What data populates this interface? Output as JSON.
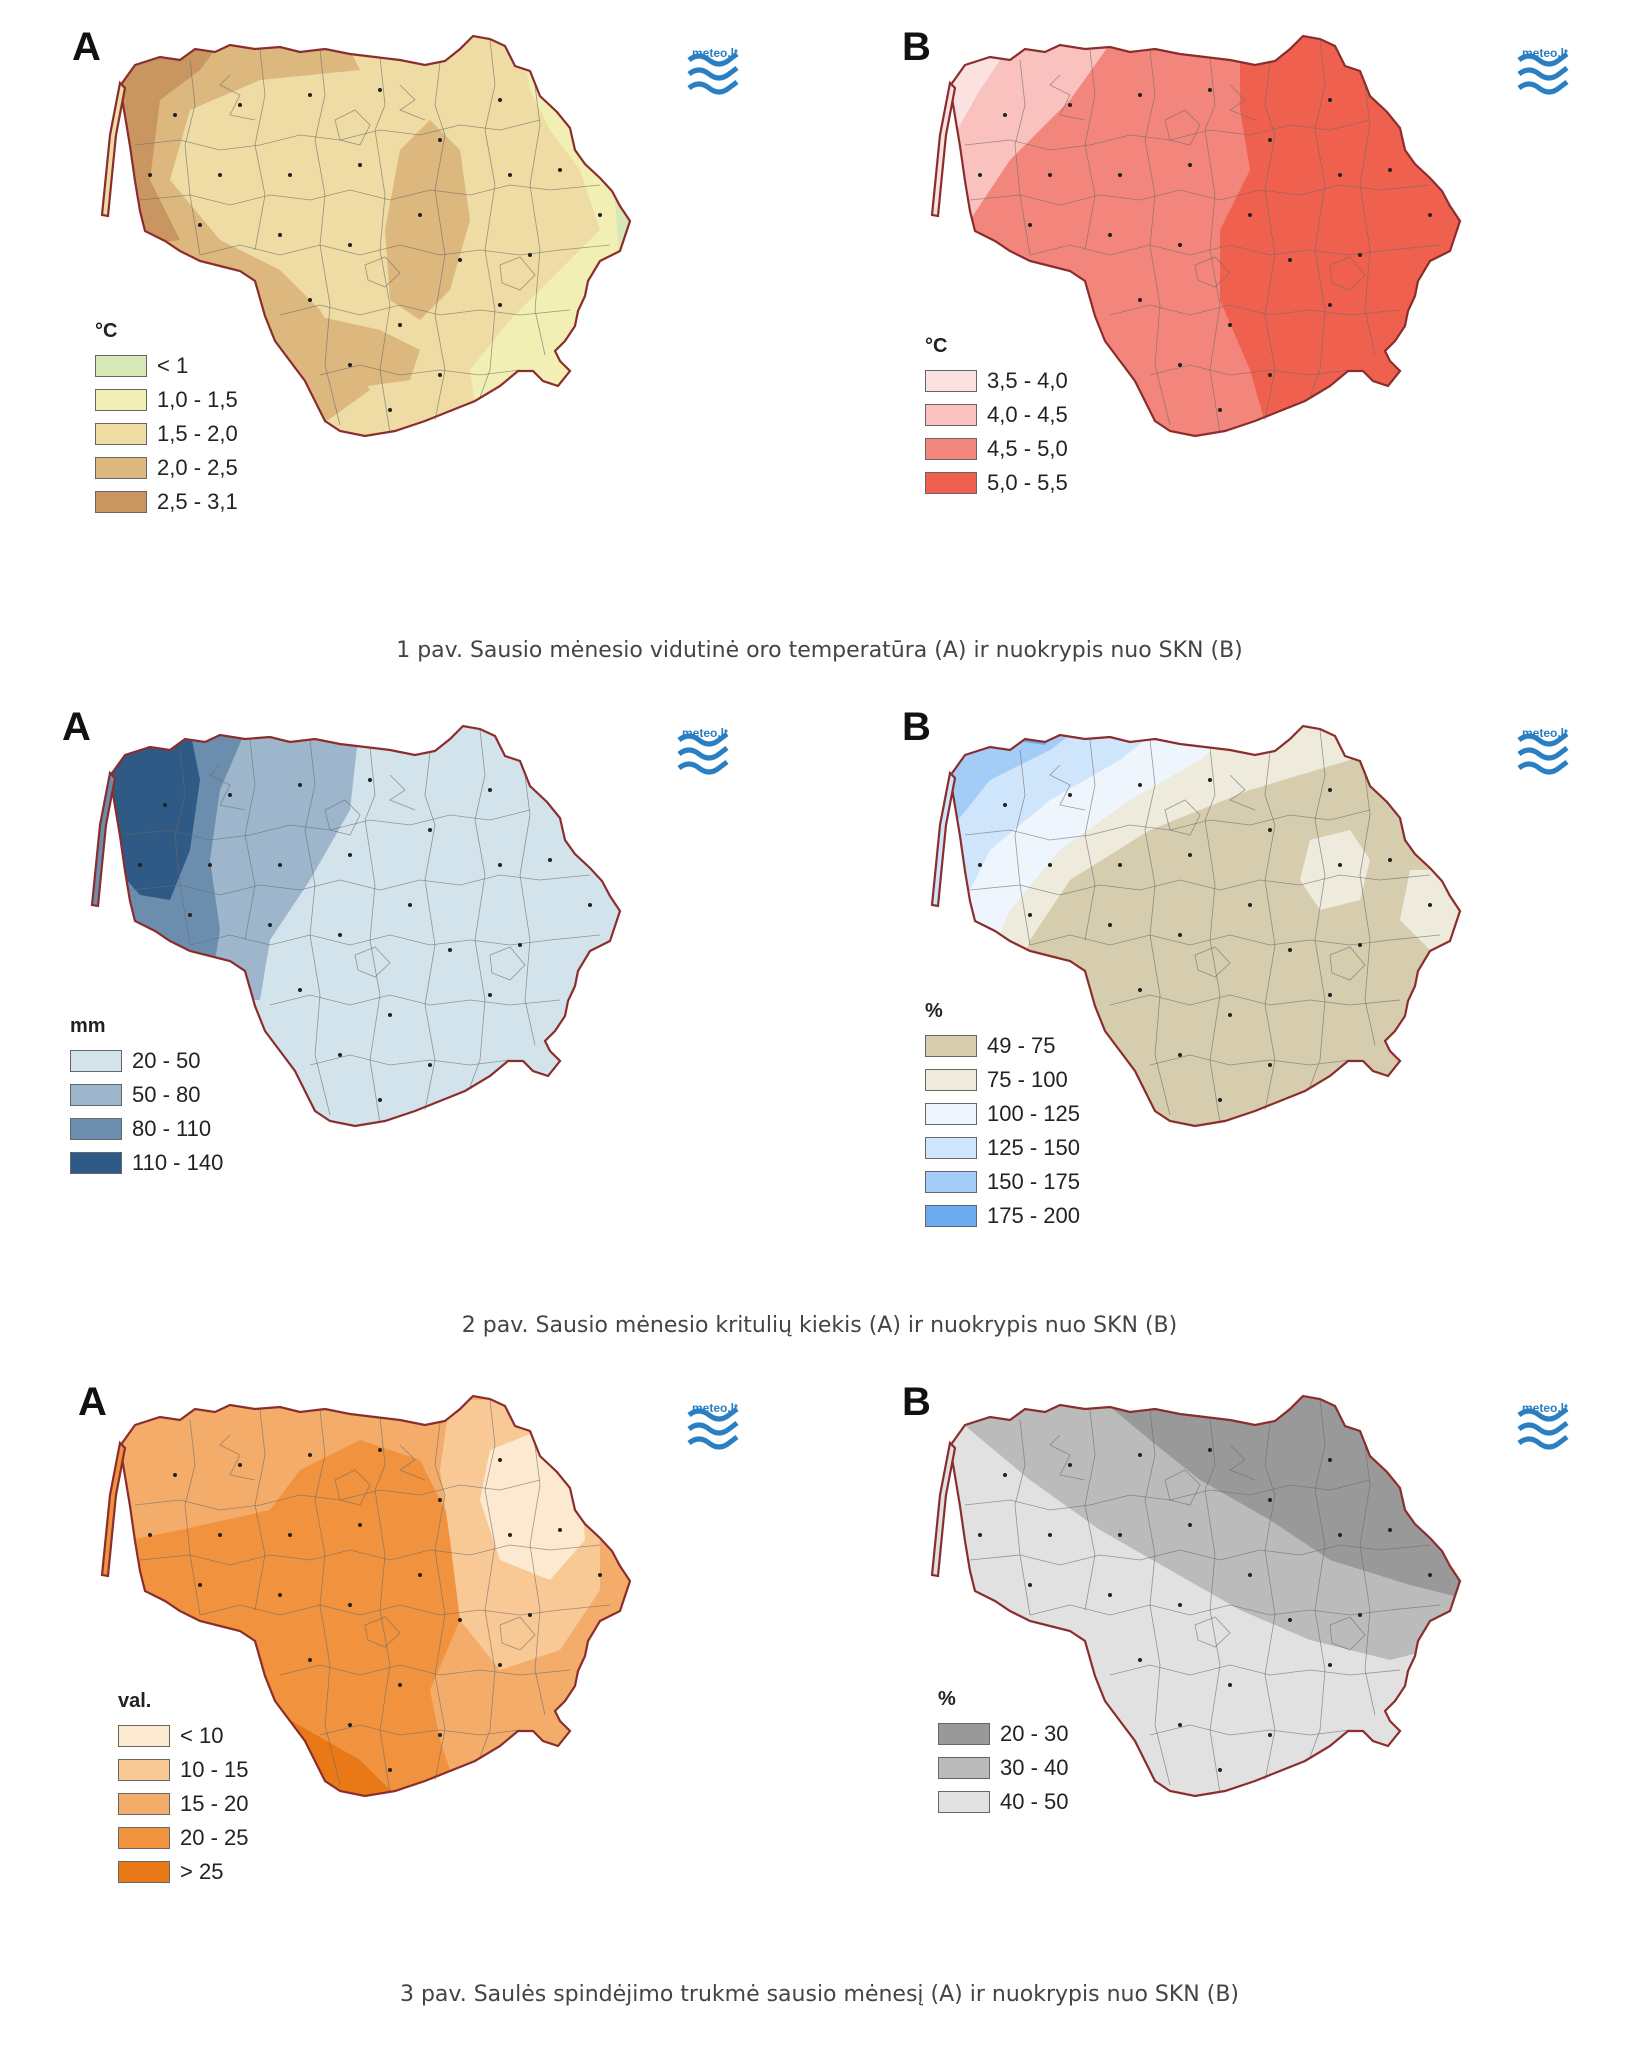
{
  "panels": [
    {
      "id": "1A",
      "letter": "A",
      "unit": "°C",
      "legend": [
        {
          "label": "< 1",
          "color": "#d7e7b6"
        },
        {
          "label": "1,0 - 1,5",
          "color": "#f2efb4"
        },
        {
          "label": "1,5 - 2,0",
          "color": "#eedca4"
        },
        {
          "label": "2,0 - 2,5",
          "color": "#dcb77e"
        },
        {
          "label": "2,5 - 3,1",
          "color": "#c99661"
        }
      ]
    },
    {
      "id": "1B",
      "letter": "B",
      "unit": "°C",
      "legend": [
        {
          "label": "3,5 - 4,0",
          "color": "#fbe1e0"
        },
        {
          "label": "4,0 - 4,5",
          "color": "#f9c2be"
        },
        {
          "label": "4,5 - 5,0",
          "color": "#f3867c"
        },
        {
          "label": "5,0 - 5,5",
          "color": "#f0604e"
        }
      ]
    },
    {
      "id": "2A",
      "letter": "A",
      "unit": "mm",
      "legend": [
        {
          "label": "20 - 50",
          "color": "#d3e3eb"
        },
        {
          "label": "50 - 80",
          "color": "#9db6cb"
        },
        {
          "label": "80 - 110",
          "color": "#6c8eae"
        },
        {
          "label": "110 - 140",
          "color": "#2f5a85"
        }
      ]
    },
    {
      "id": "2B",
      "letter": "B",
      "unit": "%",
      "legend": [
        {
          "label": "49 - 75",
          "color": "#d6cdae"
        },
        {
          "label": "75 - 100",
          "color": "#eeeadc"
        },
        {
          "label": "100 - 125",
          "color": "#eef5fc"
        },
        {
          "label": "125 - 150",
          "color": "#cfe5fb"
        },
        {
          "label": "150 - 175",
          "color": "#a3cdf6"
        },
        {
          "label": "175 - 200",
          "color": "#6aabee"
        }
      ]
    },
    {
      "id": "3A",
      "letter": "A",
      "unit": "val.",
      "legend": [
        {
          "label": "< 10",
          "color": "#fce9cf"
        },
        {
          "label": "10 - 15",
          "color": "#f8c995"
        },
        {
          "label": "15 - 20",
          "color": "#f4ac6a"
        },
        {
          "label": "20 - 25",
          "color": "#f0923e"
        },
        {
          "label": "> 25",
          "color": "#e97817"
        }
      ]
    },
    {
      "id": "3B",
      "letter": "B",
      "unit": "%",
      "legend": [
        {
          "label": "20 - 30",
          "color": "#999999"
        },
        {
          "label": "30 - 40",
          "color": "#bbbbbb"
        },
        {
          "label": "40 - 50",
          "color": "#e1e1e1"
        }
      ]
    }
  ],
  "logo": {
    "text": "meteo.lt",
    "color": "#2a7fc3"
  },
  "captions": [
    "1 pav. Sausio mėnesio vidutinė oro temperatūra (A) ir nuokrypis nuo SKN (B)",
    "2 pav. Sausio mėnesio kritulių kiekis (A) ir nuokrypis nuo SKN (B)",
    "3 pav. Saulės spindėjimo trukmė sausio mėnesį (A) ir nuokrypis nuo SKN (B)"
  ]
}
